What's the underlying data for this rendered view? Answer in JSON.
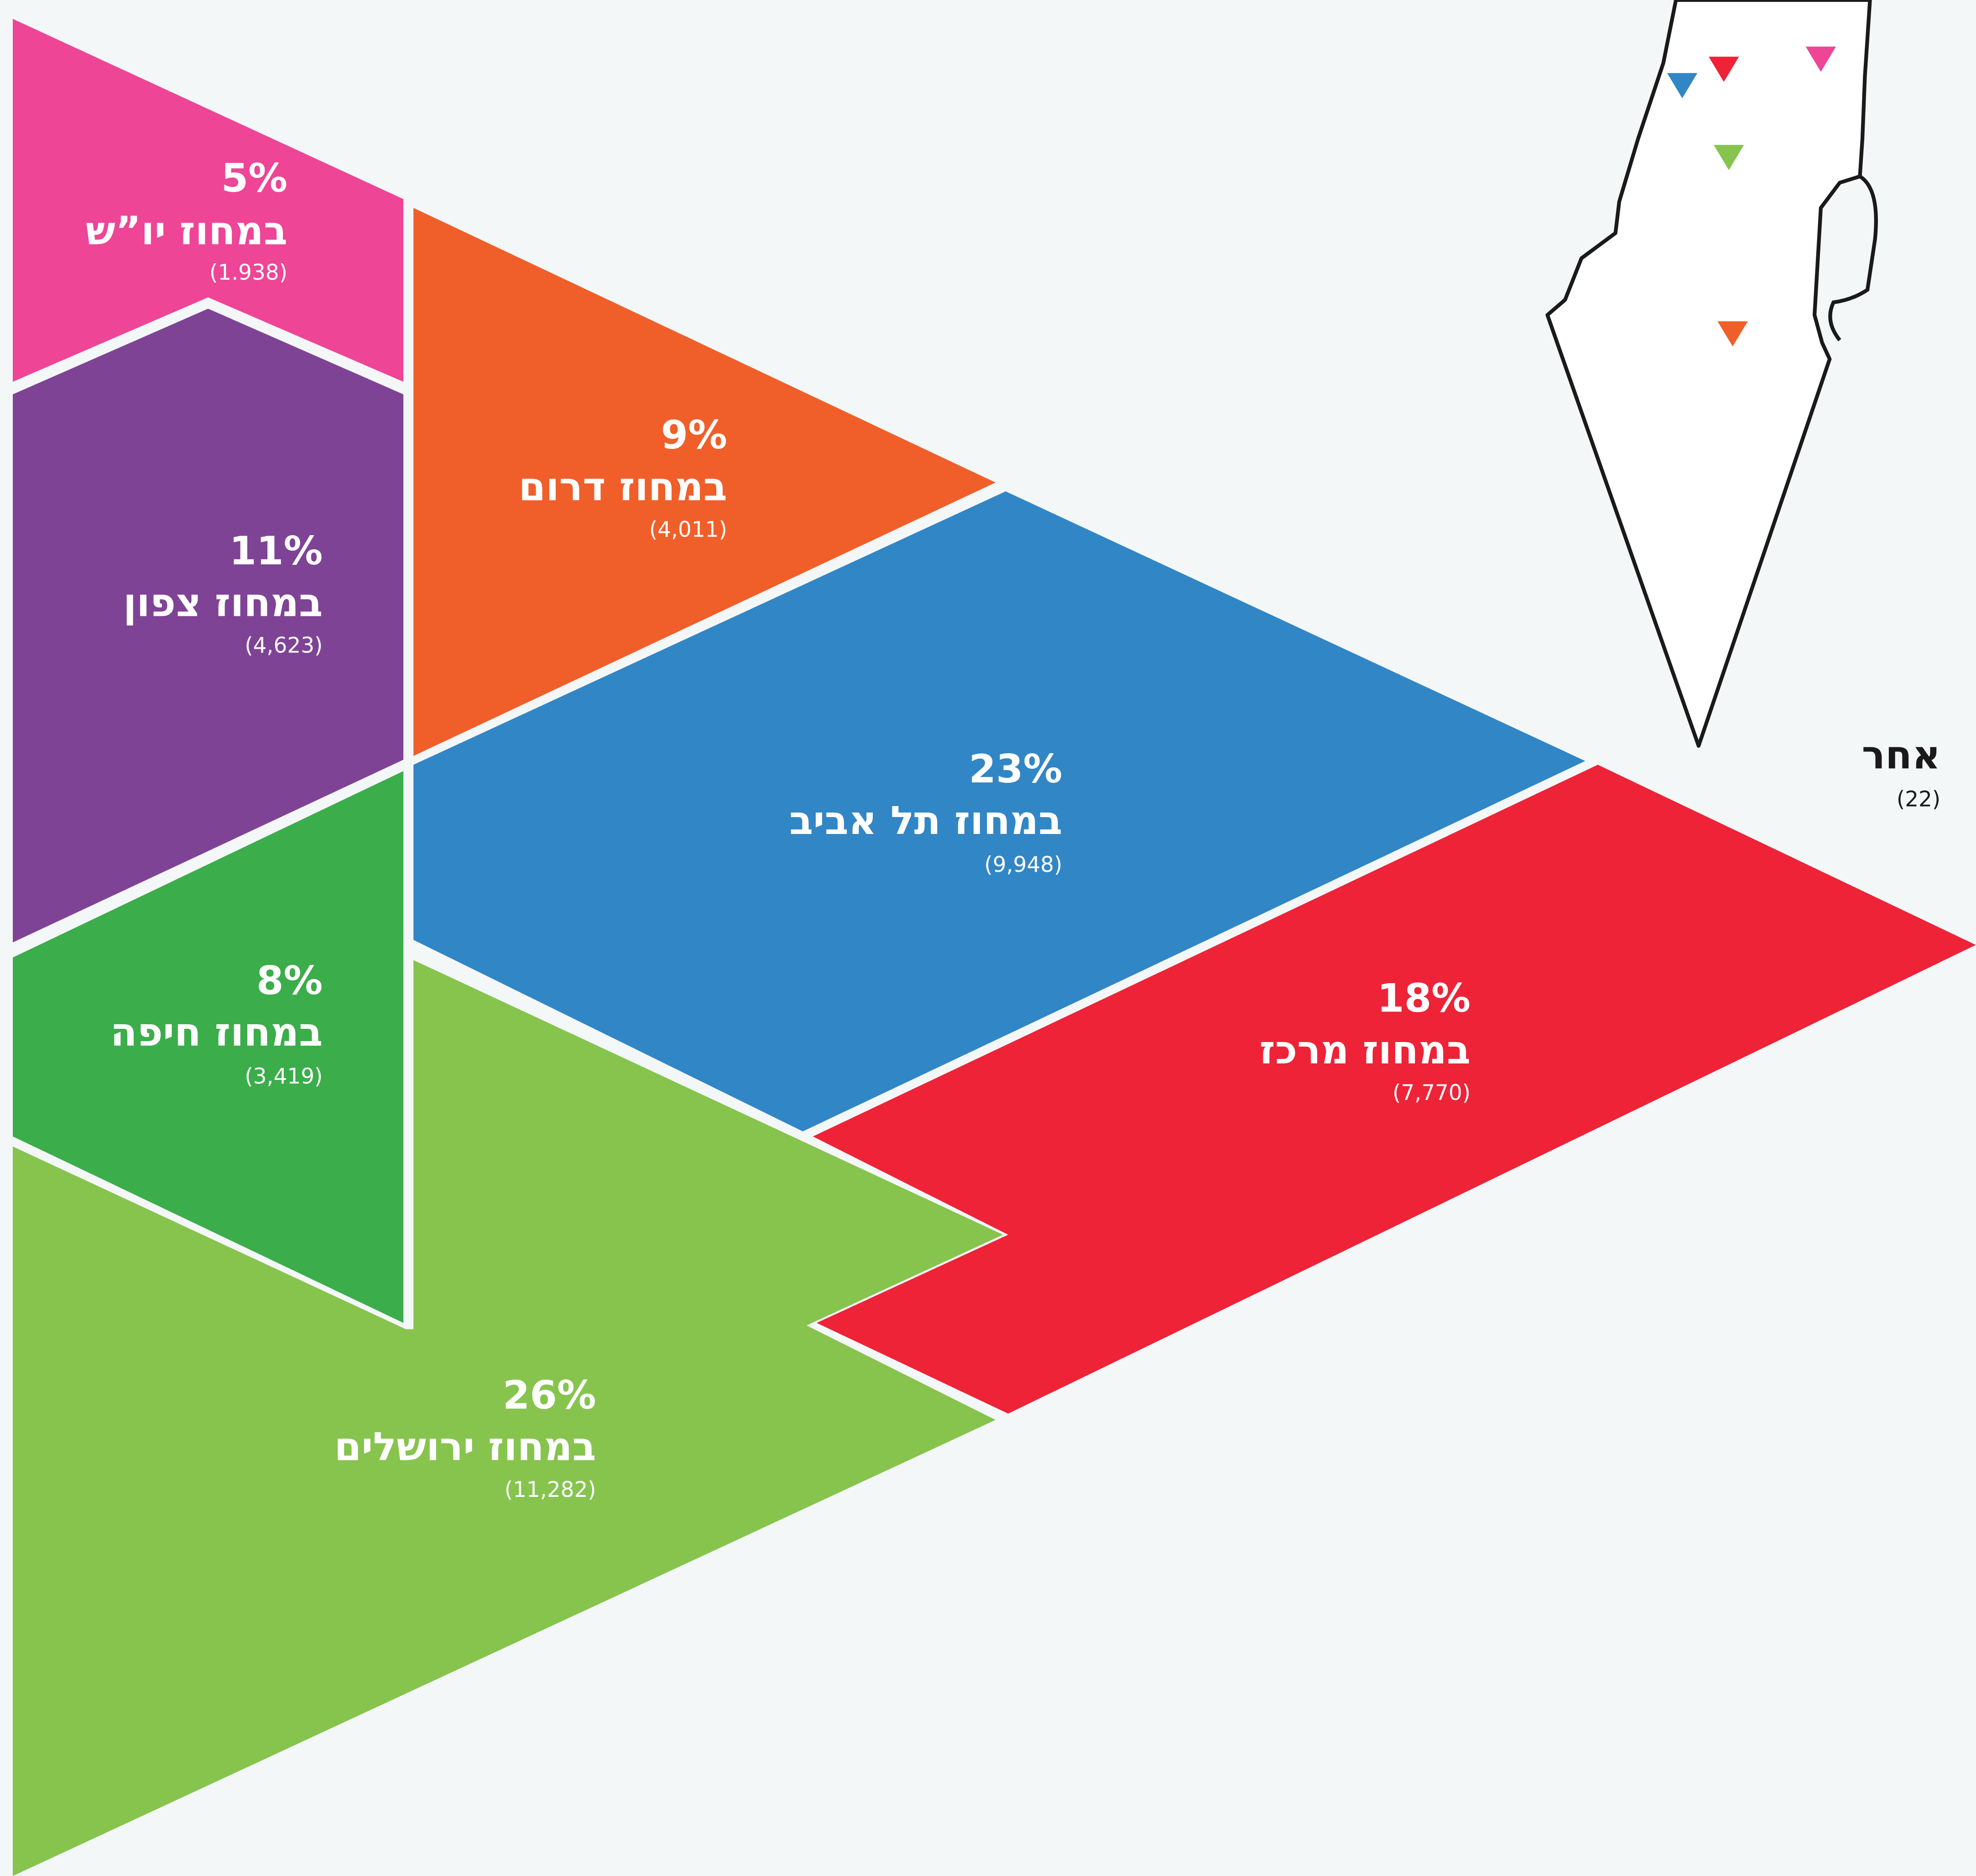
{
  "regions": [
    {
      "percent": "5%",
      "name": "במחוז יו”ש",
      "count": "(1.938)"
    },
    {
      "percent": "9%",
      "name": "במחוז דרום",
      "count": "(4,011)"
    },
    {
      "percent": "11%",
      "name": "במחוז צפון",
      "count": "(4,623)"
    },
    {
      "percent": "23%",
      "name": "במחוז תל אביב",
      "count": "(9,948)"
    },
    {
      "percent": "8%",
      "name": "במחוז חיפה",
      "count": "(3,419)"
    },
    {
      "percent": "18%",
      "name": "במחוז מרכז",
      "count": "(7,770)"
    },
    {
      "percent": "26%",
      "name": "במחוז ירושלים",
      "count": "(11,282)"
    }
  ],
  "other": {
    "name": "אחר",
    "count": "(22)"
  }
}
